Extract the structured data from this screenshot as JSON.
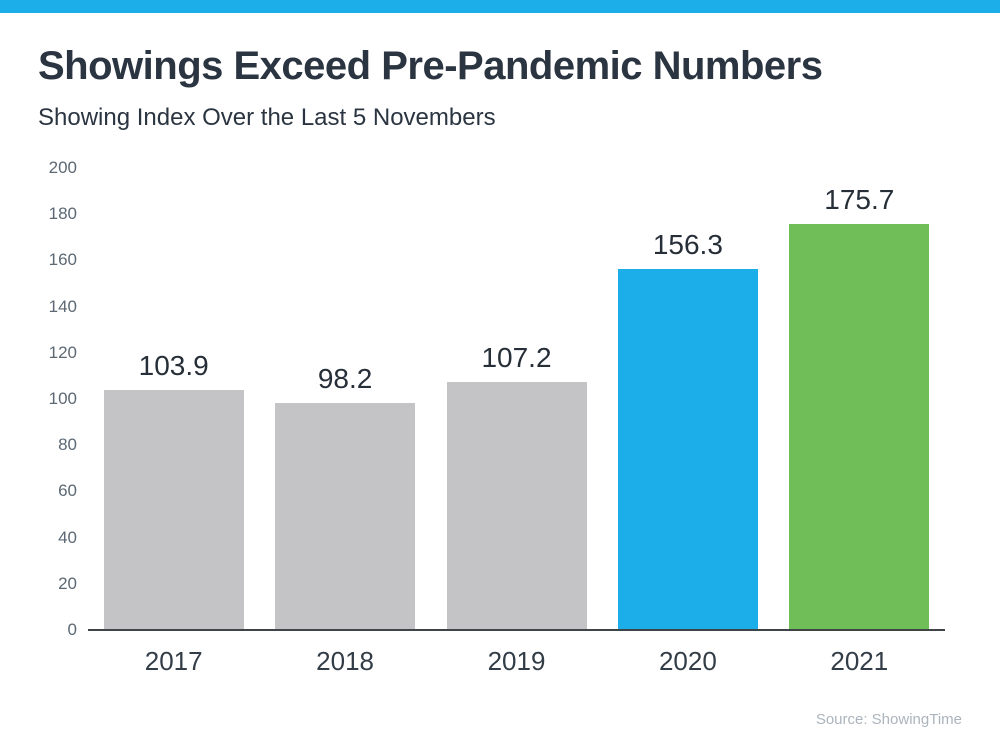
{
  "page": {
    "title": "Showings Exceed Pre-Pandemic Numbers",
    "subtitle": "Showing Index Over the Last 5 Novembers",
    "source": "Source: ShowingTime",
    "accent_color": "#1CAEE8"
  },
  "chart_data": {
    "type": "bar",
    "title": "Showings Exceed Pre-Pandemic Numbers",
    "subtitle": "Showing Index Over the Last 5 Novembers",
    "categories": [
      "2017",
      "2018",
      "2019",
      "2020",
      "2021"
    ],
    "values": [
      103.9,
      98.2,
      107.2,
      156.3,
      175.7
    ],
    "value_labels": [
      "103.9",
      "98.2",
      "107.2",
      "156.3",
      "175.7"
    ],
    "bar_colors": [
      "#C4C4C6",
      "#C4C4C6",
      "#C4C4C6",
      "#1CAEE8",
      "#6FBE57"
    ],
    "highlight_colors": {
      "gray": "#C4C4C6",
      "blue": "#1CAEE8",
      "green": "#6FBE57"
    },
    "xlabel": "",
    "ylabel": "",
    "ylim": [
      0,
      200
    ],
    "yticks": [
      0,
      20,
      40,
      60,
      80,
      100,
      120,
      140,
      160,
      180,
      200
    ],
    "grid": false,
    "legend": "none",
    "source": "Source: ShowingTime"
  }
}
